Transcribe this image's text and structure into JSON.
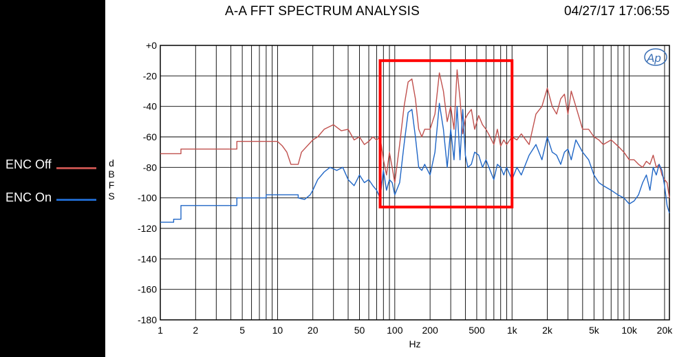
{
  "header": {
    "title": "A-A FFT SPECTRUM ANALYSIS",
    "timestamp": "04/27/17 17:06:55",
    "logo": "Ap"
  },
  "legend": [
    {
      "label": "ENC Off",
      "color": "#c0504d"
    },
    {
      "label": "ENC On",
      "color": "#1f66c6"
    }
  ],
  "chart_data": {
    "type": "line",
    "xlabel": "Hz",
    "ylabel": "dBFS",
    "xscale": "log",
    "xlim": [
      1,
      22000
    ],
    "ylim": [
      -180,
      0
    ],
    "grid": true,
    "x_ticks": [
      "1",
      "2",
      "5",
      "10",
      "20",
      "50",
      "100",
      "200",
      "500",
      "1k",
      "2k",
      "5k",
      "10k",
      "20k"
    ],
    "x_tick_values": [
      1,
      2,
      5,
      10,
      20,
      50,
      100,
      200,
      500,
      1000,
      2000,
      5000,
      10000,
      20000
    ],
    "y_ticks": [
      "+0",
      "-20",
      "-40",
      "-60",
      "-80",
      "-100",
      "-120",
      "-140",
      "-160",
      "-180"
    ],
    "y_tick_values": [
      0,
      -20,
      -40,
      -60,
      -80,
      -100,
      -120,
      -140,
      -160,
      -180
    ],
    "highlight_box": {
      "x": [
        75,
        1000
      ],
      "y": [
        -106,
        -10
      ],
      "color": "#ff0000"
    },
    "series": [
      {
        "name": "ENC Off",
        "color": "#c0504d",
        "x": [
          1,
          1.5,
          1.5,
          4.5,
          4.5,
          10,
          11,
          12,
          13,
          15,
          16,
          20,
          22,
          25,
          30,
          35,
          40,
          45,
          50,
          55,
          60,
          65,
          70,
          75,
          80,
          85,
          90,
          95,
          100,
          110,
          120,
          130,
          140,
          150,
          160,
          170,
          180,
          200,
          220,
          240,
          260,
          280,
          300,
          320,
          340,
          360,
          380,
          400,
          420,
          450,
          480,
          520,
          560,
          600,
          650,
          700,
          750,
          800,
          850,
          900,
          1000,
          1100,
          1200,
          1400,
          1600,
          1800,
          2000,
          2200,
          2400,
          2600,
          2800,
          3000,
          3200,
          3500,
          4000,
          4500,
          5000,
          5500,
          6000,
          7000,
          8000,
          9000,
          10000,
          11000,
          12000,
          13000,
          14000,
          15000,
          16000,
          17000,
          18000,
          19000,
          20000,
          21000,
          22000
        ],
        "y": [
          -71,
          -71,
          -68,
          -68,
          -63,
          -63,
          -66,
          -70,
          -78,
          -78,
          -70,
          -62,
          -60,
          -55,
          -52,
          -56,
          -55,
          -62,
          -60,
          -65,
          -63,
          -60,
          -62,
          -60,
          -75,
          -85,
          -70,
          -80,
          -90,
          -65,
          -40,
          -24,
          -22,
          -35,
          -55,
          -60,
          -55,
          -55,
          -45,
          -18,
          -30,
          -50,
          -40,
          -55,
          -16,
          -35,
          -58,
          -48,
          -45,
          -42,
          -55,
          -46,
          -52,
          -55,
          -60,
          -65,
          -55,
          -66,
          -62,
          -65,
          -60,
          -62,
          -58,
          -65,
          -45,
          -40,
          -28,
          -40,
          -45,
          -35,
          -32,
          -45,
          -30,
          -40,
          -55,
          -55,
          -60,
          -62,
          -65,
          -62,
          -66,
          -70,
          -75,
          -75,
          -78,
          -80,
          -76,
          -78,
          -72,
          -80,
          -78,
          -85,
          -88,
          -90,
          -100
        ]
      },
      {
        "name": "ENC On",
        "color": "#1f66c6",
        "x": [
          1,
          1.3,
          1.3,
          1.5,
          1.5,
          4.5,
          4.5,
          8,
          8,
          15,
          15,
          17,
          19,
          20,
          22,
          25,
          28,
          32,
          36,
          40,
          45,
          50,
          55,
          60,
          65,
          70,
          75,
          80,
          85,
          90,
          95,
          100,
          110,
          120,
          130,
          140,
          150,
          160,
          170,
          180,
          200,
          220,
          240,
          260,
          280,
          300,
          320,
          340,
          360,
          380,
          400,
          420,
          450,
          480,
          520,
          560,
          600,
          650,
          700,
          750,
          800,
          850,
          900,
          1000,
          1100,
          1200,
          1400,
          1600,
          1800,
          2000,
          2200,
          2400,
          2600,
          2800,
          3000,
          3200,
          3500,
          4000,
          4500,
          5000,
          5500,
          6000,
          7000,
          8000,
          9000,
          10000,
          11000,
          12000,
          13000,
          14000,
          15000,
          16000,
          17000,
          18000,
          19000,
          20000,
          21000,
          22000
        ],
        "y": [
          -116,
          -116,
          -114,
          -114,
          -105,
          -105,
          -100,
          -100,
          -98,
          -98,
          -100,
          -101,
          -98,
          -95,
          -88,
          -83,
          -80,
          -82,
          -80,
          -88,
          -92,
          -85,
          -90,
          -88,
          -92,
          -95,
          -100,
          -82,
          -95,
          -88,
          -90,
          -98,
          -90,
          -65,
          -44,
          -42,
          -60,
          -80,
          -82,
          -78,
          -85,
          -70,
          -38,
          -55,
          -80,
          -55,
          -75,
          -40,
          -75,
          -42,
          -72,
          -80,
          -78,
          -70,
          -72,
          -80,
          -75,
          -82,
          -88,
          -78,
          -80,
          -85,
          -80,
          -88,
          -80,
          -85,
          -72,
          -65,
          -75,
          -60,
          -70,
          -72,
          -78,
          -70,
          -68,
          -75,
          -62,
          -70,
          -75,
          -85,
          -90,
          -92,
          -95,
          -98,
          -100,
          -104,
          -102,
          -98,
          -90,
          -85,
          -95,
          -80,
          -85,
          -78,
          -82,
          -92,
          -105,
          -110
        ]
      }
    ]
  }
}
